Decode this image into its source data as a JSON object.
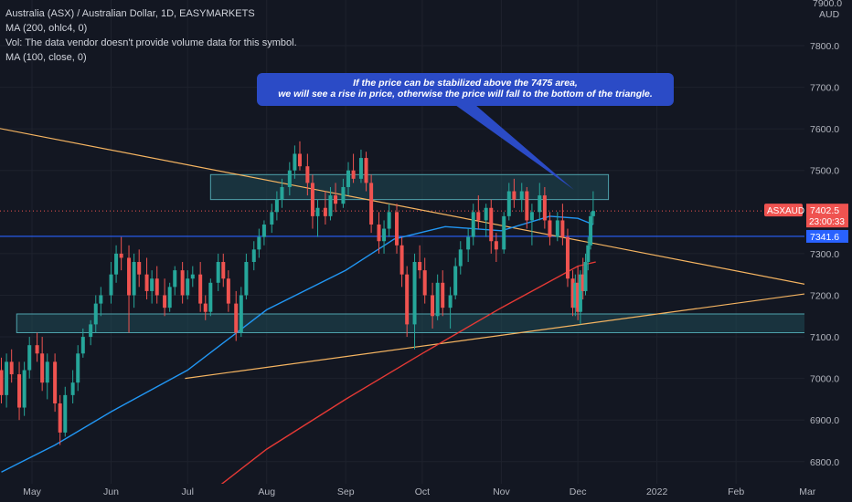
{
  "legend": {
    "title": "Australia (ASX) / Australian Dollar, 1D, EASYMARKETS",
    "ma200": "MA (200, ohlc4, 0)",
    "volume_note": "Vol: The data vendor doesn't provide volume data for this symbol.",
    "ma100": "MA (100, close, 0)"
  },
  "callout": {
    "line1": "If the price can be stabilized above the 7475 area,",
    "line2": "we will see a rise in price, otherwise the price will fall to the bottom of the triangle."
  },
  "chart_data": {
    "type": "candlestick",
    "symbol": "ASXAUD",
    "currency": "AUD",
    "price_scale_top_partial": "7900.0",
    "y_ticks": [
      "7800.0",
      "7700.0",
      "7600.0",
      "7500.0",
      "7300.0",
      "7200.0",
      "7100.0",
      "7000.0",
      "6900.0",
      "6800.0"
    ],
    "x_ticks": [
      "May",
      "Jun",
      "Jul",
      "Aug",
      "Sep",
      "Oct",
      "Nov",
      "Dec",
      "2022",
      "Feb",
      "Mar"
    ],
    "last_price": "7402.5",
    "countdown": "23:00:33",
    "horizontal_level": "7341.6",
    "colors": {
      "up": "#26a69a",
      "down": "#ef5350",
      "ma100": "#2196f3",
      "ma200": "#e53935",
      "trendline": "#f5b461",
      "zone_fill": "#1f4a55",
      "zone_border": "#4fa3ad",
      "level": "#2962ff",
      "callout": "#2b4bc6"
    },
    "resistance_zone": [
      7430,
      7490
    ],
    "support_zone": [
      7110,
      7155
    ],
    "trendline_upper": [
      [
        "2021-03-29",
        7625
      ],
      [
        "2022-03-14",
        7210
      ]
    ],
    "trendline_lower": [
      [
        "2021-06-30",
        7000
      ],
      [
        "2022-03-14",
        7215
      ]
    ],
    "ma100_points": [
      [
        "2021-04-19",
        6775
      ],
      [
        "2021-05-10",
        6840
      ],
      [
        "2021-06-01",
        6920
      ],
      [
        "2021-07-01",
        7020
      ],
      [
        "2021-08-01",
        7165
      ],
      [
        "2021-09-01",
        7260
      ],
      [
        "2021-09-20",
        7335
      ],
      [
        "2021-10-10",
        7365
      ],
      [
        "2021-11-01",
        7355
      ],
      [
        "2021-11-20",
        7390
      ],
      [
        "2021-12-01",
        7385
      ],
      [
        "2021-12-07",
        7370
      ]
    ],
    "ma200_points": [
      [
        "2021-07-12",
        6735
      ],
      [
        "2021-08-01",
        6830
      ],
      [
        "2021-09-01",
        6950
      ],
      [
        "2021-10-01",
        7060
      ],
      [
        "2021-11-01",
        7170
      ],
      [
        "2021-12-01",
        7270
      ],
      [
        "2021-12-08",
        7280
      ]
    ],
    "candles": [
      {
        "t": "2021-04-19",
        "o": 7020,
        "h": 7050,
        "l": 6940,
        "c": 6960
      },
      {
        "t": "2021-04-21",
        "o": 6960,
        "h": 7060,
        "l": 6930,
        "c": 7040
      },
      {
        "t": "2021-04-23",
        "o": 7040,
        "h": 7070,
        "l": 6990,
        "c": 7010
      },
      {
        "t": "2021-04-26",
        "o": 7010,
        "h": 7040,
        "l": 6900,
        "c": 6930
      },
      {
        "t": "2021-04-28",
        "o": 6930,
        "h": 7040,
        "l": 6910,
        "c": 7020
      },
      {
        "t": "2021-04-30",
        "o": 7020,
        "h": 7100,
        "l": 7000,
        "c": 7080
      },
      {
        "t": "2021-05-03",
        "o": 7080,
        "h": 7110,
        "l": 7040,
        "c": 7060
      },
      {
        "t": "2021-05-05",
        "o": 7060,
        "h": 7100,
        "l": 6970,
        "c": 6990
      },
      {
        "t": "2021-05-07",
        "o": 6990,
        "h": 7060,
        "l": 6950,
        "c": 7040
      },
      {
        "t": "2021-05-10",
        "o": 7040,
        "h": 7060,
        "l": 6920,
        "c": 6940
      },
      {
        "t": "2021-05-12",
        "o": 6940,
        "h": 6960,
        "l": 6840,
        "c": 6870
      },
      {
        "t": "2021-05-14",
        "o": 6870,
        "h": 6980,
        "l": 6860,
        "c": 6960
      },
      {
        "t": "2021-05-17",
        "o": 6960,
        "h": 7020,
        "l": 6940,
        "c": 6990
      },
      {
        "t": "2021-05-19",
        "o": 6990,
        "h": 7080,
        "l": 6970,
        "c": 7060
      },
      {
        "t": "2021-05-21",
        "o": 7060,
        "h": 7120,
        "l": 7050,
        "c": 7100
      },
      {
        "t": "2021-05-24",
        "o": 7100,
        "h": 7140,
        "l": 7080,
        "c": 7130
      },
      {
        "t": "2021-05-26",
        "o": 7130,
        "h": 7200,
        "l": 7110,
        "c": 7180
      },
      {
        "t": "2021-05-28",
        "o": 7180,
        "h": 7220,
        "l": 7150,
        "c": 7200
      },
      {
        "t": "2021-06-01",
        "o": 7200,
        "h": 7280,
        "l": 7180,
        "c": 7250
      },
      {
        "t": "2021-06-03",
        "o": 7250,
        "h": 7320,
        "l": 7230,
        "c": 7300
      },
      {
        "t": "2021-06-05",
        "o": 7300,
        "h": 7340,
        "l": 7260,
        "c": 7290
      },
      {
        "t": "2021-06-08",
        "o": 7290,
        "h": 7320,
        "l": 7110,
        "c": 7200
      },
      {
        "t": "2021-06-10",
        "o": 7200,
        "h": 7300,
        "l": 7170,
        "c": 7280
      },
      {
        "t": "2021-06-12",
        "o": 7280,
        "h": 7310,
        "l": 7220,
        "c": 7250
      },
      {
        "t": "2021-06-15",
        "o": 7250,
        "h": 7290,
        "l": 7190,
        "c": 7210
      },
      {
        "t": "2021-06-17",
        "o": 7210,
        "h": 7260,
        "l": 7180,
        "c": 7240
      },
      {
        "t": "2021-06-19",
        "o": 7240,
        "h": 7270,
        "l": 7180,
        "c": 7200
      },
      {
        "t": "2021-06-22",
        "o": 7200,
        "h": 7240,
        "l": 7150,
        "c": 7170
      },
      {
        "t": "2021-06-24",
        "o": 7170,
        "h": 7230,
        "l": 7160,
        "c": 7220
      },
      {
        "t": "2021-06-26",
        "o": 7220,
        "h": 7270,
        "l": 7200,
        "c": 7260
      },
      {
        "t": "2021-06-29",
        "o": 7260,
        "h": 7280,
        "l": 7180,
        "c": 7200
      },
      {
        "t": "2021-07-01",
        "o": 7200,
        "h": 7260,
        "l": 7190,
        "c": 7240
      },
      {
        "t": "2021-07-03",
        "o": 7240,
        "h": 7270,
        "l": 7220,
        "c": 7250
      },
      {
        "t": "2021-07-06",
        "o": 7250,
        "h": 7280,
        "l": 7160,
        "c": 7180
      },
      {
        "t": "2021-07-08",
        "o": 7180,
        "h": 7200,
        "l": 7140,
        "c": 7160
      },
      {
        "t": "2021-07-10",
        "o": 7160,
        "h": 7240,
        "l": 7150,
        "c": 7230
      },
      {
        "t": "2021-07-13",
        "o": 7230,
        "h": 7300,
        "l": 7210,
        "c": 7280
      },
      {
        "t": "2021-07-15",
        "o": 7280,
        "h": 7300,
        "l": 7220,
        "c": 7240
      },
      {
        "t": "2021-07-17",
        "o": 7240,
        "h": 7260,
        "l": 7160,
        "c": 7180
      },
      {
        "t": "2021-07-20",
        "o": 7180,
        "h": 7210,
        "l": 7090,
        "c": 7110
      },
      {
        "t": "2021-07-22",
        "o": 7110,
        "h": 7220,
        "l": 7100,
        "c": 7200
      },
      {
        "t": "2021-07-24",
        "o": 7200,
        "h": 7300,
        "l": 7190,
        "c": 7280
      },
      {
        "t": "2021-07-27",
        "o": 7280,
        "h": 7330,
        "l": 7260,
        "c": 7310
      },
      {
        "t": "2021-07-29",
        "o": 7310,
        "h": 7360,
        "l": 7290,
        "c": 7340
      },
      {
        "t": "2021-07-31",
        "o": 7340,
        "h": 7380,
        "l": 7320,
        "c": 7370
      },
      {
        "t": "2021-08-03",
        "o": 7370,
        "h": 7420,
        "l": 7350,
        "c": 7400
      },
      {
        "t": "2021-08-05",
        "o": 7400,
        "h": 7450,
        "l": 7380,
        "c": 7430
      },
      {
        "t": "2021-08-07",
        "o": 7430,
        "h": 7480,
        "l": 7410,
        "c": 7460
      },
      {
        "t": "2021-08-10",
        "o": 7460,
        "h": 7520,
        "l": 7440,
        "c": 7500
      },
      {
        "t": "2021-08-12",
        "o": 7500,
        "h": 7560,
        "l": 7480,
        "c": 7540
      },
      {
        "t": "2021-08-14",
        "o": 7540,
        "h": 7570,
        "l": 7500,
        "c": 7510
      },
      {
        "t": "2021-08-17",
        "o": 7510,
        "h": 7540,
        "l": 7440,
        "c": 7470
      },
      {
        "t": "2021-08-19",
        "o": 7470,
        "h": 7490,
        "l": 7360,
        "c": 7390
      },
      {
        "t": "2021-08-21",
        "o": 7390,
        "h": 7430,
        "l": 7340,
        "c": 7410
      },
      {
        "t": "2021-08-24",
        "o": 7410,
        "h": 7450,
        "l": 7370,
        "c": 7390
      },
      {
        "t": "2021-08-26",
        "o": 7390,
        "h": 7460,
        "l": 7380,
        "c": 7440
      },
      {
        "t": "2021-08-28",
        "o": 7440,
        "h": 7470,
        "l": 7400,
        "c": 7420
      },
      {
        "t": "2021-08-31",
        "o": 7420,
        "h": 7480,
        "l": 7410,
        "c": 7460
      },
      {
        "t": "2021-09-02",
        "o": 7460,
        "h": 7520,
        "l": 7440,
        "c": 7500
      },
      {
        "t": "2021-09-04",
        "o": 7500,
        "h": 7540,
        "l": 7470,
        "c": 7480
      },
      {
        "t": "2021-09-07",
        "o": 7480,
        "h": 7550,
        "l": 7470,
        "c": 7530
      },
      {
        "t": "2021-09-09",
        "o": 7530,
        "h": 7545,
        "l": 7450,
        "c": 7470
      },
      {
        "t": "2021-09-11",
        "o": 7470,
        "h": 7490,
        "l": 7350,
        "c": 7370
      },
      {
        "t": "2021-09-14",
        "o": 7370,
        "h": 7400,
        "l": 7300,
        "c": 7330
      },
      {
        "t": "2021-09-16",
        "o": 7330,
        "h": 7380,
        "l": 7300,
        "c": 7360
      },
      {
        "t": "2021-09-18",
        "o": 7360,
        "h": 7420,
        "l": 7340,
        "c": 7400
      },
      {
        "t": "2021-09-21",
        "o": 7400,
        "h": 7420,
        "l": 7300,
        "c": 7320
      },
      {
        "t": "2021-09-23",
        "o": 7320,
        "h": 7340,
        "l": 7220,
        "c": 7250
      },
      {
        "t": "2021-09-25",
        "o": 7250,
        "h": 7270,
        "l": 7100,
        "c": 7130
      },
      {
        "t": "2021-09-28",
        "o": 7130,
        "h": 7300,
        "l": 7070,
        "c": 7280
      },
      {
        "t": "2021-09-30",
        "o": 7280,
        "h": 7320,
        "l": 7240,
        "c": 7260
      },
      {
        "t": "2021-10-02",
        "o": 7260,
        "h": 7290,
        "l": 7180,
        "c": 7200
      },
      {
        "t": "2021-10-05",
        "o": 7200,
        "h": 7230,
        "l": 7120,
        "c": 7150
      },
      {
        "t": "2021-10-07",
        "o": 7150,
        "h": 7250,
        "l": 7140,
        "c": 7230
      },
      {
        "t": "2021-10-09",
        "o": 7230,
        "h": 7260,
        "l": 7150,
        "c": 7170
      },
      {
        "t": "2021-10-12",
        "o": 7170,
        "h": 7220,
        "l": 7120,
        "c": 7200
      },
      {
        "t": "2021-10-14",
        "o": 7200,
        "h": 7290,
        "l": 7190,
        "c": 7270
      },
      {
        "t": "2021-10-16",
        "o": 7270,
        "h": 7330,
        "l": 7250,
        "c": 7310
      },
      {
        "t": "2021-10-19",
        "o": 7310,
        "h": 7360,
        "l": 7280,
        "c": 7340
      },
      {
        "t": "2021-10-21",
        "o": 7340,
        "h": 7420,
        "l": 7320,
        "c": 7400
      },
      {
        "t": "2021-10-23",
        "o": 7400,
        "h": 7440,
        "l": 7360,
        "c": 7380
      },
      {
        "t": "2021-10-26",
        "o": 7380,
        "h": 7420,
        "l": 7340,
        "c": 7410
      },
      {
        "t": "2021-10-28",
        "o": 7410,
        "h": 7430,
        "l": 7300,
        "c": 7330
      },
      {
        "t": "2021-10-30",
        "o": 7330,
        "h": 7350,
        "l": 7280,
        "c": 7310
      },
      {
        "t": "2021-11-02",
        "o": 7310,
        "h": 7400,
        "l": 7300,
        "c": 7390
      },
      {
        "t": "2021-11-04",
        "o": 7390,
        "h": 7470,
        "l": 7380,
        "c": 7450
      },
      {
        "t": "2021-11-06",
        "o": 7450,
        "h": 7480,
        "l": 7410,
        "c": 7430
      },
      {
        "t": "2021-11-09",
        "o": 7430,
        "h": 7470,
        "l": 7400,
        "c": 7450
      },
      {
        "t": "2021-11-11",
        "o": 7450,
        "h": 7460,
        "l": 7360,
        "c": 7380
      },
      {
        "t": "2021-11-13",
        "o": 7380,
        "h": 7420,
        "l": 7320,
        "c": 7400
      },
      {
        "t": "2021-11-16",
        "o": 7400,
        "h": 7470,
        "l": 7380,
        "c": 7440
      },
      {
        "t": "2021-11-18",
        "o": 7440,
        "h": 7460,
        "l": 7360,
        "c": 7380
      },
      {
        "t": "2021-11-20",
        "o": 7380,
        "h": 7400,
        "l": 7320,
        "c": 7340
      },
      {
        "t": "2021-11-23",
        "o": 7340,
        "h": 7400,
        "l": 7330,
        "c": 7380
      },
      {
        "t": "2021-11-25",
        "o": 7380,
        "h": 7420,
        "l": 7320,
        "c": 7340
      },
      {
        "t": "2021-11-27",
        "o": 7340,
        "h": 7360,
        "l": 7220,
        "c": 7240
      },
      {
        "t": "2021-11-29",
        "o": 7240,
        "h": 7260,
        "l": 7150,
        "c": 7170
      },
      {
        "t": "2021-11-30",
        "o": 7170,
        "h": 7250,
        "l": 7150,
        "c": 7230
      },
      {
        "t": "2021-12-01",
        "o": 7230,
        "h": 7270,
        "l": 7140,
        "c": 7160
      },
      {
        "t": "2021-12-02",
        "o": 7160,
        "h": 7260,
        "l": 7130,
        "c": 7250
      },
      {
        "t": "2021-12-03",
        "o": 7250,
        "h": 7290,
        "l": 7190,
        "c": 7210
      },
      {
        "t": "2021-12-04",
        "o": 7210,
        "h": 7300,
        "l": 7200,
        "c": 7280
      },
      {
        "t": "2021-12-05",
        "o": 7280,
        "h": 7340,
        "l": 7260,
        "c": 7320
      },
      {
        "t": "2021-12-06",
        "o": 7320,
        "h": 7400,
        "l": 7310,
        "c": 7390
      },
      {
        "t": "2021-12-07",
        "o": 7390,
        "h": 7450,
        "l": 7370,
        "c": 7402.5
      }
    ]
  }
}
